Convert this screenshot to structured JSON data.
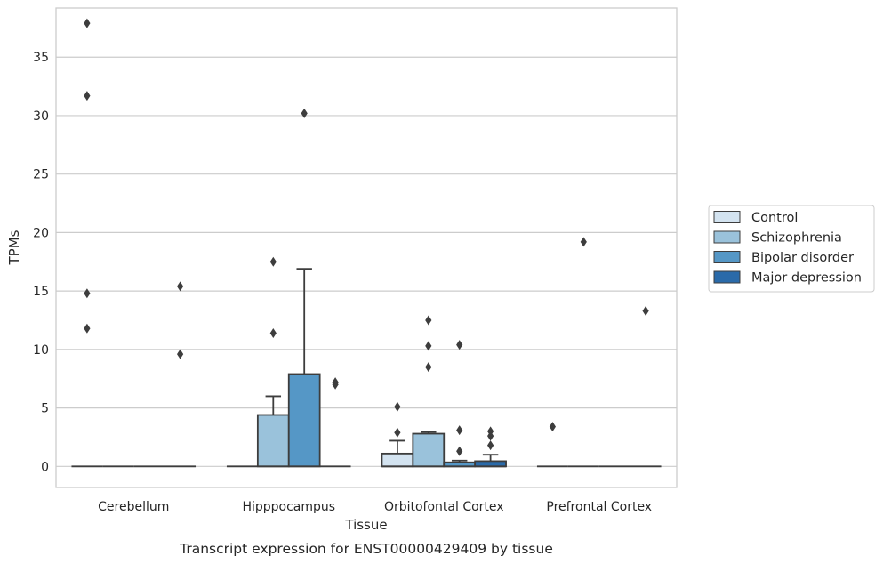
{
  "chart_data": {
    "type": "box",
    "title": "",
    "caption": "Transcript expression for ENST00000429409 by tissue",
    "xlabel": "Tissue",
    "ylabel": "TPMs",
    "ylim": [
      -1.8,
      39.2
    ],
    "y_ticks": [
      0,
      5,
      10,
      15,
      20,
      25,
      30,
      35
    ],
    "grid": "horizontal",
    "legend_position": "right",
    "categories": [
      "Cerebellum",
      "Hipppocampus",
      "Orbitofontal Cortex",
      "Prefrontal Cortex"
    ],
    "series": [
      {
        "name": "Control",
        "color": "#d3e3f0",
        "boxes": [
          {
            "q1": 0,
            "median": 0,
            "q3": 0,
            "whisker_low": 0,
            "whisker_high": 0,
            "outliers": [
              37.9,
              31.7,
              14.8,
              11.8
            ]
          },
          {
            "q1": 0,
            "median": 0,
            "q3": 0,
            "whisker_low": 0,
            "whisker_high": 0,
            "outliers": []
          },
          {
            "q1": 0,
            "median": 0,
            "q3": 1.1,
            "whisker_low": 0,
            "whisker_high": 2.2,
            "outliers": [
              5.1,
              2.9
            ]
          },
          {
            "q1": 0,
            "median": 0,
            "q3": 0,
            "whisker_low": 0,
            "whisker_high": 0,
            "outliers": [
              3.4
            ]
          }
        ]
      },
      {
        "name": "Schizophrenia",
        "color": "#9ac2db",
        "boxes": [
          {
            "q1": 0,
            "median": 0,
            "q3": 0,
            "whisker_low": 0,
            "whisker_high": 0,
            "outliers": []
          },
          {
            "q1": 0,
            "median": 0,
            "q3": 4.4,
            "whisker_low": 0,
            "whisker_high": 6.0,
            "outliers": [
              17.5,
              11.4
            ]
          },
          {
            "q1": 0,
            "median": 0,
            "q3": 2.8,
            "whisker_low": 0,
            "whisker_high": 2.95,
            "outliers": [
              12.5,
              10.3,
              8.5
            ]
          },
          {
            "q1": 0,
            "median": 0,
            "q3": 0,
            "whisker_low": 0,
            "whisker_high": 0,
            "outliers": [
              19.2
            ]
          }
        ]
      },
      {
        "name": "Bipolar disorder",
        "color": "#5597c6",
        "boxes": [
          {
            "q1": 0,
            "median": 0,
            "q3": 0,
            "whisker_low": 0,
            "whisker_high": 0,
            "outliers": []
          },
          {
            "q1": 0,
            "median": 0,
            "q3": 7.9,
            "whisker_low": 0,
            "whisker_high": 16.9,
            "outliers": [
              30.2
            ]
          },
          {
            "q1": 0,
            "median": 0,
            "q3": 0.35,
            "whisker_low": 0,
            "whisker_high": 0.5,
            "outliers": [
              10.4,
              3.1,
              1.3
            ]
          },
          {
            "q1": 0,
            "median": 0,
            "q3": 0,
            "whisker_low": 0,
            "whisker_high": 0,
            "outliers": []
          }
        ]
      },
      {
        "name": "Major depression",
        "color": "#2a6aa9",
        "boxes": [
          {
            "q1": 0,
            "median": 0,
            "q3": 0,
            "whisker_low": 0,
            "whisker_high": 0,
            "outliers": [
              15.4,
              9.6
            ]
          },
          {
            "q1": 0,
            "median": 0,
            "q3": 0,
            "whisker_low": 0,
            "whisker_high": 0,
            "outliers": [
              7.2,
              7.0
            ]
          },
          {
            "q1": 0,
            "median": 0,
            "q3": 0.45,
            "whisker_low": 0,
            "whisker_high": 1.0,
            "outliers": [
              3.0,
              2.6,
              1.8
            ]
          },
          {
            "q1": 0,
            "median": 0,
            "q3": 0,
            "whisker_low": 0,
            "whisker_high": 0,
            "outliers": [
              13.3
            ]
          }
        ]
      }
    ]
  }
}
